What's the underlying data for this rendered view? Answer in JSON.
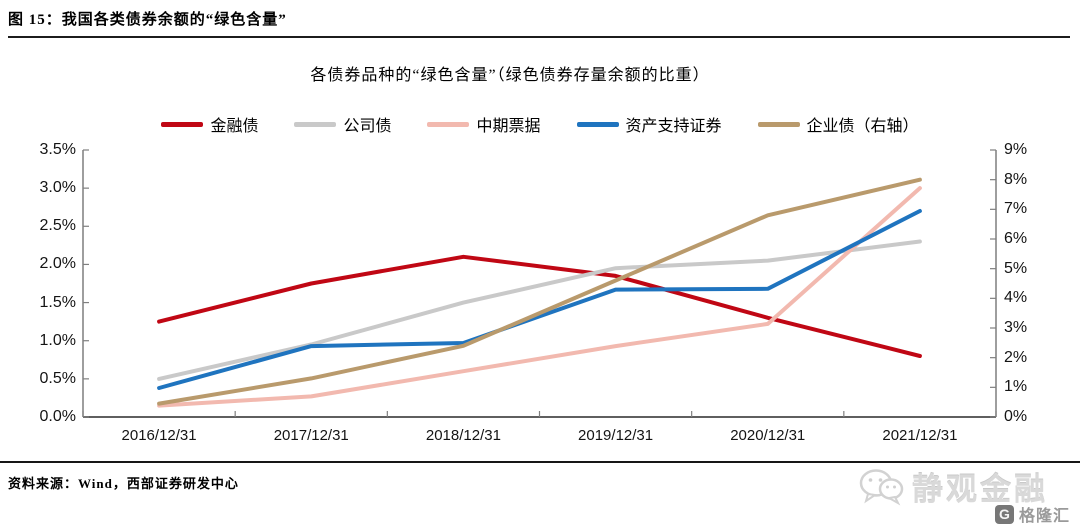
{
  "figure": {
    "caption": "图 15：我国各类债券余额的“绿色含量”",
    "source_note": "资料来源：Wind，西部证券研发中心"
  },
  "watermark": {
    "brand": "静观金融",
    "logo_letter": "G",
    "logo_text": "格隆汇"
  },
  "chart_data": {
    "type": "line",
    "title": "各债券品种的“绿色含量”（绿色债券存量余额的比重）",
    "categories": [
      "2016/12/31",
      "2017/12/31",
      "2018/12/31",
      "2019/12/31",
      "2020/12/31",
      "2021/12/31"
    ],
    "series": [
      {
        "name": "金融债",
        "axis": "left",
        "color": "#c00714",
        "values": [
          1.25,
          1.75,
          2.1,
          1.85,
          1.3,
          0.8
        ]
      },
      {
        "name": "公司债",
        "axis": "left",
        "color": "#c9c9c9",
        "values": [
          0.5,
          0.95,
          1.5,
          1.95,
          2.05,
          2.3
        ]
      },
      {
        "name": "中期票据",
        "axis": "left",
        "color": "#f2b9af",
        "values": [
          0.15,
          0.27,
          0.6,
          0.93,
          1.22,
          3.0
        ]
      },
      {
        "name": "资产支持证券",
        "axis": "left",
        "color": "#1f74bf",
        "values": [
          0.38,
          0.93,
          0.97,
          1.67,
          1.68,
          2.7
        ]
      },
      {
        "name": "企业债（右轴）",
        "axis": "right",
        "color": "#b99a6c",
        "values": [
          0.45,
          1.3,
          2.4,
          4.6,
          6.8,
          8.0
        ]
      }
    ],
    "left_axis": {
      "min": 0,
      "max": 3.5,
      "step": 0.5,
      "ticks": [
        "3.5%",
        "3.0%",
        "2.5%",
        "2.0%",
        "1.5%",
        "1.0%",
        "0.5%",
        "0.0%"
      ]
    },
    "right_axis": {
      "min": 0,
      "max": 9,
      "step": 1,
      "ticks": [
        "9%",
        "8%",
        "7%",
        "6%",
        "5%",
        "4%",
        "3%",
        "2%",
        "1%",
        "0%"
      ]
    },
    "legend_position": "top",
    "grid": false,
    "axis_color": "#7f7f7f"
  }
}
